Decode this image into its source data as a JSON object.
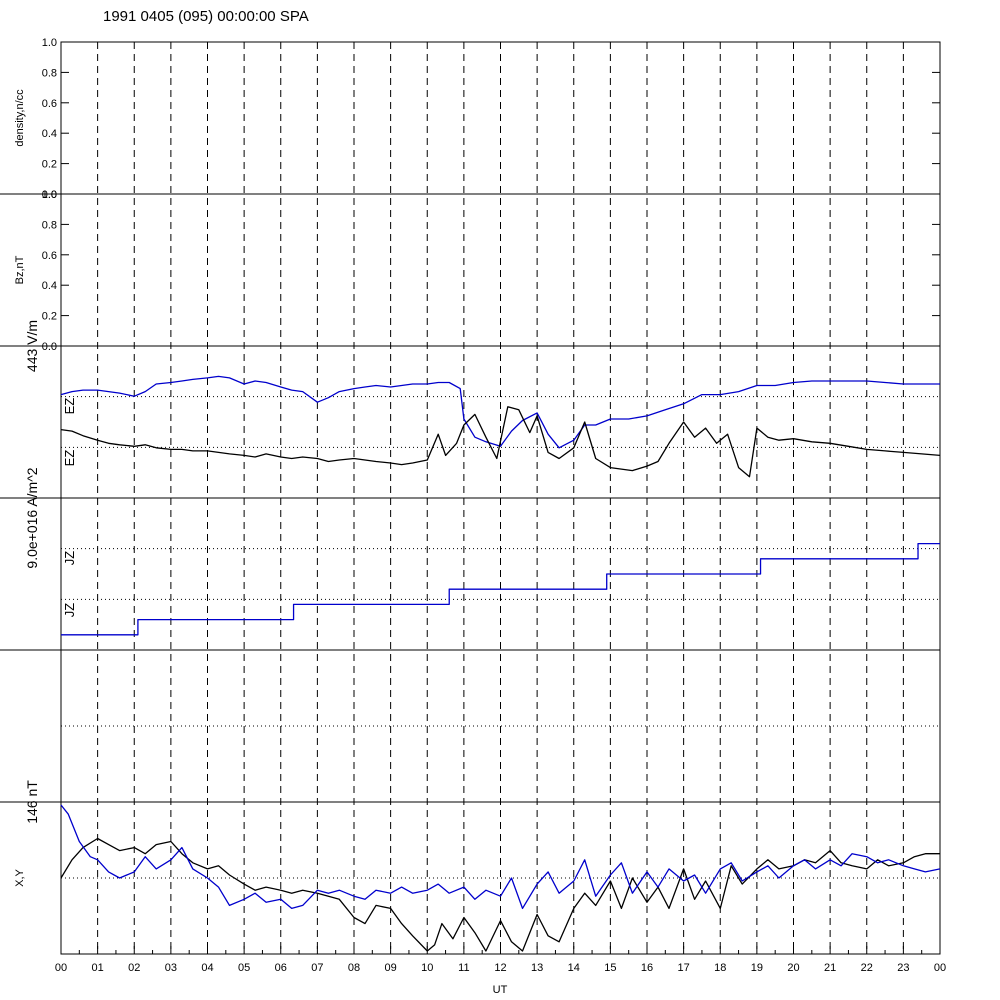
{
  "header": {
    "title": "1991 0405 (095) 00:00:00 SPA"
  },
  "chart_data": {
    "type": "line",
    "x_axis": {
      "label": "UT",
      "range_hours": [
        0,
        24
      ],
      "ticks": [
        "00",
        "01",
        "02",
        "03",
        "04",
        "05",
        "06",
        "07",
        "08",
        "09",
        "10",
        "11",
        "12",
        "13",
        "14",
        "15",
        "16",
        "17",
        "18",
        "19",
        "20",
        "21",
        "22",
        "23",
        "00"
      ]
    },
    "grid": "dashed vertical line every hour",
    "colors": {
      "black": "#000000",
      "blue": "#0000cc"
    },
    "panels": [
      {
        "name": "density",
        "ylabel": "density,n/cc",
        "ylim": [
          0,
          1
        ],
        "ticks": [
          "0.0",
          "0.2",
          "0.4",
          "0.6",
          "0.8",
          "1.0"
        ],
        "series": []
      },
      {
        "name": "bz",
        "ylabel": "Bz,nT",
        "ylim": [
          0,
          1
        ],
        "ticks": [
          "0.0",
          "0.2",
          "0.4",
          "0.6",
          "0.8",
          "1.0"
        ],
        "series": []
      },
      {
        "name": "ez",
        "scale_label": "443 V/m",
        "ylabel_top": "EZ",
        "ylabel_bottom": "EZ",
        "dotted_reference_lines": 2,
        "series": [
          {
            "color": "blue",
            "x": [
              0.0,
              0.3,
              0.6,
              1.0,
              1.3,
              1.6,
              2.0,
              2.3,
              2.6,
              3.0,
              3.3,
              3.6,
              4.0,
              4.3,
              4.6,
              5.0,
              5.3,
              5.6,
              6.0,
              6.3,
              6.6,
              7.0,
              7.3,
              7.6,
              8.0,
              8.3,
              8.6,
              9.0,
              9.3,
              9.6,
              10.0,
              10.3,
              10.6,
              10.9,
              11.0,
              11.3,
              11.6,
              12.0,
              12.3,
              12.6,
              13.0,
              13.3,
              13.6,
              14.0,
              14.3,
              14.6,
              15.0,
              15.5,
              16.0,
              16.5,
              17.0,
              17.5,
              18.0,
              18.5,
              19.0,
              19.5,
              20.0,
              20.5,
              21.0,
              21.5,
              22.0,
              22.5,
              23.0,
              23.5,
              24.0
            ],
            "y": [
              0.68,
              0.7,
              0.71,
              0.71,
              0.7,
              0.69,
              0.67,
              0.7,
              0.75,
              0.76,
              0.77,
              0.78,
              0.79,
              0.8,
              0.79,
              0.75,
              0.77,
              0.76,
              0.73,
              0.71,
              0.7,
              0.63,
              0.66,
              0.7,
              0.72,
              0.73,
              0.74,
              0.73,
              0.74,
              0.75,
              0.75,
              0.76,
              0.76,
              0.72,
              0.52,
              0.4,
              0.37,
              0.34,
              0.44,
              0.51,
              0.56,
              0.42,
              0.33,
              0.38,
              0.48,
              0.48,
              0.52,
              0.52,
              0.54,
              0.58,
              0.62,
              0.68,
              0.68,
              0.7,
              0.74,
              0.74,
              0.76,
              0.77,
              0.77,
              0.77,
              0.77,
              0.76,
              0.75,
              0.75,
              0.75
            ]
          },
          {
            "color": "black",
            "x": [
              0.0,
              0.3,
              0.6,
              1.0,
              1.3,
              1.6,
              2.0,
              2.3,
              2.6,
              3.0,
              3.3,
              3.6,
              4.0,
              4.3,
              4.6,
              5.0,
              5.3,
              5.6,
              6.0,
              6.3,
              6.6,
              7.0,
              7.3,
              7.6,
              8.0,
              8.3,
              8.6,
              9.0,
              9.3,
              9.6,
              10.0,
              10.3,
              10.5,
              10.8,
              11.0,
              11.3,
              11.6,
              11.9,
              12.2,
              12.5,
              12.8,
              13.0,
              13.3,
              13.6,
              14.0,
              14.3,
              14.6,
              15.0,
              15.3,
              15.6,
              16.0,
              16.3,
              16.6,
              17.0,
              17.3,
              17.6,
              17.9,
              18.2,
              18.5,
              18.8,
              19.0,
              19.3,
              19.6,
              20.0,
              20.5,
              21.0,
              21.5,
              22.0,
              22.5,
              23.0,
              23.5,
              24.0
            ],
            "y": [
              0.45,
              0.44,
              0.41,
              0.38,
              0.36,
              0.35,
              0.34,
              0.35,
              0.33,
              0.32,
              0.32,
              0.31,
              0.31,
              0.3,
              0.29,
              0.28,
              0.27,
              0.29,
              0.27,
              0.26,
              0.27,
              0.26,
              0.24,
              0.25,
              0.26,
              0.25,
              0.24,
              0.23,
              0.22,
              0.23,
              0.25,
              0.42,
              0.28,
              0.36,
              0.48,
              0.55,
              0.4,
              0.26,
              0.6,
              0.58,
              0.43,
              0.54,
              0.3,
              0.26,
              0.33,
              0.5,
              0.26,
              0.2,
              0.19,
              0.18,
              0.21,
              0.24,
              0.36,
              0.5,
              0.4,
              0.46,
              0.36,
              0.42,
              0.2,
              0.14,
              0.46,
              0.4,
              0.38,
              0.39,
              0.37,
              0.36,
              0.34,
              0.32,
              0.31,
              0.3,
              0.29,
              0.28
            ]
          }
        ]
      },
      {
        "name": "jz",
        "scale_label": "9.0e+016 A/m^2",
        "ylabel_top": "JZ",
        "ylabel_bottom": "JZ",
        "dotted_reference_lines": 2,
        "series": [
          {
            "color": "blue",
            "type": "step",
            "x": [
              0,
              2.1,
              6.35,
              10.6,
              14.9,
              19.1,
              23.4,
              24
            ],
            "y": [
              0.1,
              0.2,
              0.3,
              0.4,
              0.5,
              0.6,
              0.7,
              0.7
            ]
          }
        ]
      },
      {
        "name": "empty",
        "dotted_reference_lines": 1,
        "series": []
      },
      {
        "name": "xy",
        "scale_label": "146 nT",
        "ylabel": "X,Y",
        "dotted_reference_lines": 1,
        "series": [
          {
            "color": "black",
            "x": [
              0.0,
              0.3,
              0.6,
              1.0,
              1.3,
              1.6,
              2.0,
              2.3,
              2.6,
              3.0,
              3.3,
              3.6,
              4.0,
              4.3,
              4.6,
              5.0,
              5.3,
              5.6,
              6.0,
              6.3,
              6.6,
              7.0,
              7.3,
              7.6,
              8.0,
              8.3,
              8.6,
              9.0,
              9.3,
              9.6,
              10.0,
              10.2,
              10.4,
              10.7,
              11.0,
              11.3,
              11.6,
              12.0,
              12.3,
              12.6,
              13.0,
              13.3,
              13.6,
              14.0,
              14.3,
              14.6,
              15.0,
              15.3,
              15.6,
              16.0,
              16.3,
              16.6,
              17.0,
              17.3,
              17.6,
              18.0,
              18.3,
              18.6,
              19.0,
              19.3,
              19.6,
              20.0,
              20.3,
              20.6,
              21.0,
              21.3,
              21.6,
              22.0,
              22.3,
              22.6,
              23.0,
              23.3,
              23.6,
              24.0
            ],
            "y": [
              0.5,
              0.62,
              0.7,
              0.76,
              0.72,
              0.68,
              0.7,
              0.66,
              0.72,
              0.74,
              0.66,
              0.6,
              0.56,
              0.58,
              0.52,
              0.46,
              0.42,
              0.44,
              0.42,
              0.4,
              0.42,
              0.4,
              0.38,
              0.36,
              0.24,
              0.2,
              0.32,
              0.3,
              0.2,
              0.12,
              0.02,
              0.06,
              0.2,
              0.1,
              0.24,
              0.14,
              0.02,
              0.22,
              0.08,
              0.02,
              0.26,
              0.12,
              0.08,
              0.3,
              0.4,
              0.32,
              0.48,
              0.3,
              0.5,
              0.34,
              0.44,
              0.3,
              0.56,
              0.36,
              0.48,
              0.3,
              0.58,
              0.46,
              0.56,
              0.62,
              0.56,
              0.58,
              0.62,
              0.6,
              0.68,
              0.6,
              0.58,
              0.56,
              0.62,
              0.58,
              0.6,
              0.64,
              0.66,
              0.66
            ]
          },
          {
            "color": "blue",
            "x": [
              0.0,
              0.2,
              0.5,
              0.8,
              1.0,
              1.3,
              1.6,
              2.0,
              2.3,
              2.6,
              3.0,
              3.3,
              3.6,
              4.0,
              4.3,
              4.6,
              5.0,
              5.3,
              5.6,
              6.0,
              6.3,
              6.6,
              7.0,
              7.3,
              7.6,
              8.0,
              8.3,
              8.6,
              9.0,
              9.3,
              9.6,
              10.0,
              10.3,
              10.6,
              11.0,
              11.3,
              11.6,
              12.0,
              12.3,
              12.6,
              13.0,
              13.3,
              13.6,
              14.0,
              14.3,
              14.6,
              15.0,
              15.3,
              15.6,
              16.0,
              16.3,
              16.6,
              17.0,
              17.3,
              17.6,
              18.0,
              18.3,
              18.6,
              19.0,
              19.3,
              19.6,
              20.0,
              20.3,
              20.6,
              21.0,
              21.3,
              21.6,
              22.0,
              22.3,
              22.6,
              23.0,
              23.3,
              23.6,
              24.0
            ],
            "y": [
              0.98,
              0.92,
              0.74,
              0.64,
              0.62,
              0.54,
              0.5,
              0.54,
              0.64,
              0.56,
              0.62,
              0.7,
              0.56,
              0.5,
              0.44,
              0.32,
              0.36,
              0.4,
              0.34,
              0.36,
              0.3,
              0.32,
              0.42,
              0.4,
              0.42,
              0.38,
              0.36,
              0.42,
              0.4,
              0.44,
              0.4,
              0.42,
              0.46,
              0.4,
              0.44,
              0.36,
              0.42,
              0.38,
              0.5,
              0.3,
              0.46,
              0.54,
              0.4,
              0.48,
              0.62,
              0.38,
              0.52,
              0.6,
              0.4,
              0.54,
              0.44,
              0.56,
              0.48,
              0.52,
              0.4,
              0.56,
              0.6,
              0.48,
              0.54,
              0.58,
              0.5,
              0.58,
              0.62,
              0.56,
              0.62,
              0.58,
              0.66,
              0.64,
              0.6,
              0.62,
              0.58,
              0.56,
              0.54,
              0.56
            ]
          }
        ]
      }
    ]
  }
}
